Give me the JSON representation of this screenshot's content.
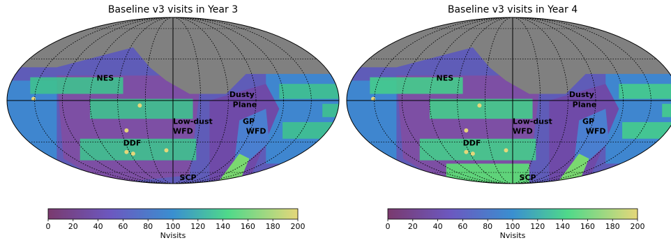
{
  "chart_data": [
    {
      "type": "heatmap",
      "title": "Baseline v3 visits in Year 3",
      "projection": "mollweide",
      "regions": [
        "NES",
        "Dusty Plane",
        "Low-dust WFD",
        "GP WFD",
        "DDF",
        "SCP"
      ],
      "region_labels": {
        "nes": "NES",
        "dusty1": "Dusty",
        "dusty2": "Plane",
        "lowdust1": "Low-dust",
        "lowdust2": "WFD",
        "gp1": "GP",
        "gp2": "WFD",
        "ddf": "DDF",
        "scp": "SCP"
      },
      "colorbar": {
        "label": "Nvisits",
        "ticks": [
          "0",
          "20",
          "40",
          "60",
          "80",
          "100",
          "120",
          "140",
          "160",
          "180",
          "200"
        ],
        "range": [
          0,
          200
        ],
        "colormap": "viridis-like"
      },
      "approx_nvisits": {
        "unobserved_north": null,
        "nes": 30,
        "low_dust_wfd_bands": 120,
        "wfd_between_bands": 80,
        "dusty_plane": 25,
        "gp_wfd": 85,
        "ddf": 200,
        "scp": 40
      }
    },
    {
      "type": "heatmap",
      "title": "Baseline v3 visits in Year 4",
      "projection": "mollweide",
      "regions": [
        "NES",
        "Dusty Plane",
        "Low-dust WFD",
        "GP WFD",
        "DDF",
        "SCP"
      ],
      "region_labels": {
        "nes": "NES",
        "dusty1": "Dusty",
        "dusty2": "Plane",
        "lowdust1": "Low-dust",
        "lowdust2": "WFD",
        "gp1": "GP",
        "gp2": "WFD",
        "ddf": "DDF",
        "scp": "SCP"
      },
      "colorbar": {
        "label": "Nvisits",
        "ticks": [
          "0",
          "20",
          "40",
          "60",
          "80",
          "100",
          "120",
          "140",
          "160",
          "180",
          "200"
        ],
        "range": [
          0,
          200
        ],
        "colormap": "viridis-like"
      },
      "approx_nvisits": {
        "unobserved_north": null,
        "nes": 30,
        "low_dust_wfd_bands": 125,
        "wfd_between_bands": 85,
        "dusty_plane": 25,
        "gp_wfd": 85,
        "ddf": 200,
        "scp": 45
      }
    }
  ],
  "colors": {
    "unobserved": "#808080",
    "low": "#7a3a6e",
    "mid": "#3a8fd0",
    "high": "#4fd98a",
    "max": "#e5d77a"
  }
}
